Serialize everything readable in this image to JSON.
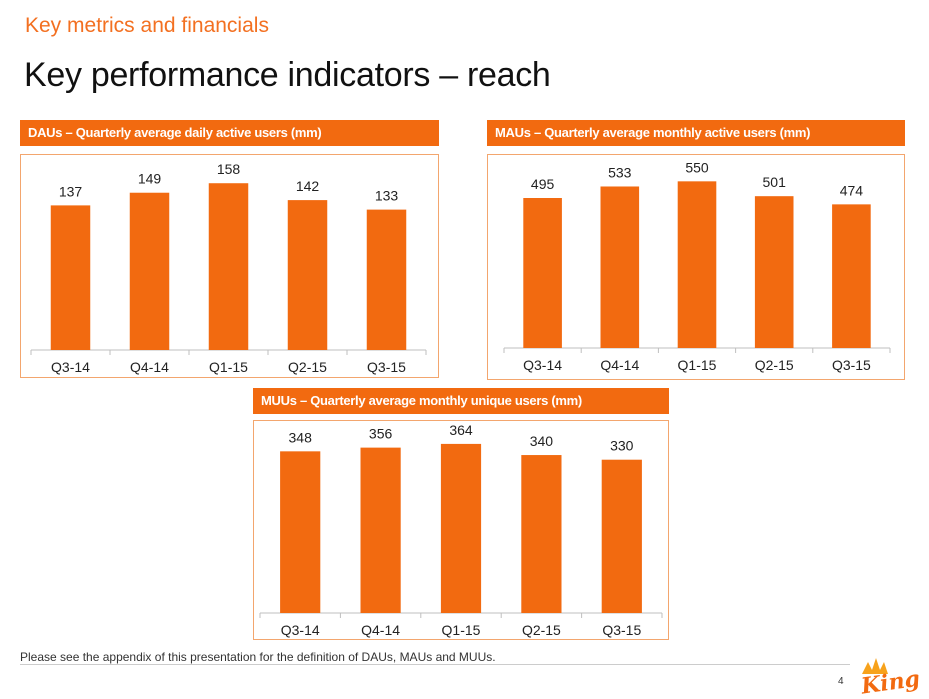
{
  "slide": {
    "section_title": "Key metrics and financials",
    "main_title": "Key performance indicators – reach",
    "footnote": "Please see the appendix of this presentation for the definition of DAUs, MAUs and MUUs.",
    "page_number": "4",
    "logo_text": "King"
  },
  "colors": {
    "accent": "#f26a10",
    "bar": "#f26a10",
    "text": "#111111"
  },
  "chart_data": [
    {
      "type": "bar",
      "title": "DAUs – Quarterly average daily active users (mm)",
      "categories": [
        "Q3-14",
        "Q4-14",
        "Q1-15",
        "Q2-15",
        "Q3-15"
      ],
      "values": [
        137,
        149,
        158,
        142,
        133
      ],
      "xlabel": "",
      "ylabel": "",
      "ylim": [
        0,
        180
      ],
      "grid": false,
      "legend": "none"
    },
    {
      "type": "bar",
      "title": "MAUs – Quarterly average monthly active users (mm)",
      "categories": [
        "Q3-14",
        "Q4-14",
        "Q1-15",
        "Q2-15",
        "Q3-15"
      ],
      "values": [
        495,
        533,
        550,
        501,
        474
      ],
      "xlabel": "",
      "ylabel": "",
      "ylim": [
        0,
        627
      ],
      "grid": false,
      "legend": "none"
    },
    {
      "type": "bar",
      "title": "MUUs – Quarterly average monthly unique users (mm)",
      "categories": [
        "Q3-14",
        "Q4-14",
        "Q1-15",
        "Q2-15",
        "Q3-15"
      ],
      "values": [
        348,
        356,
        364,
        340,
        330
      ],
      "xlabel": "",
      "ylabel": "",
      "ylim": [
        0,
        409
      ],
      "grid": false,
      "legend": "none"
    }
  ]
}
